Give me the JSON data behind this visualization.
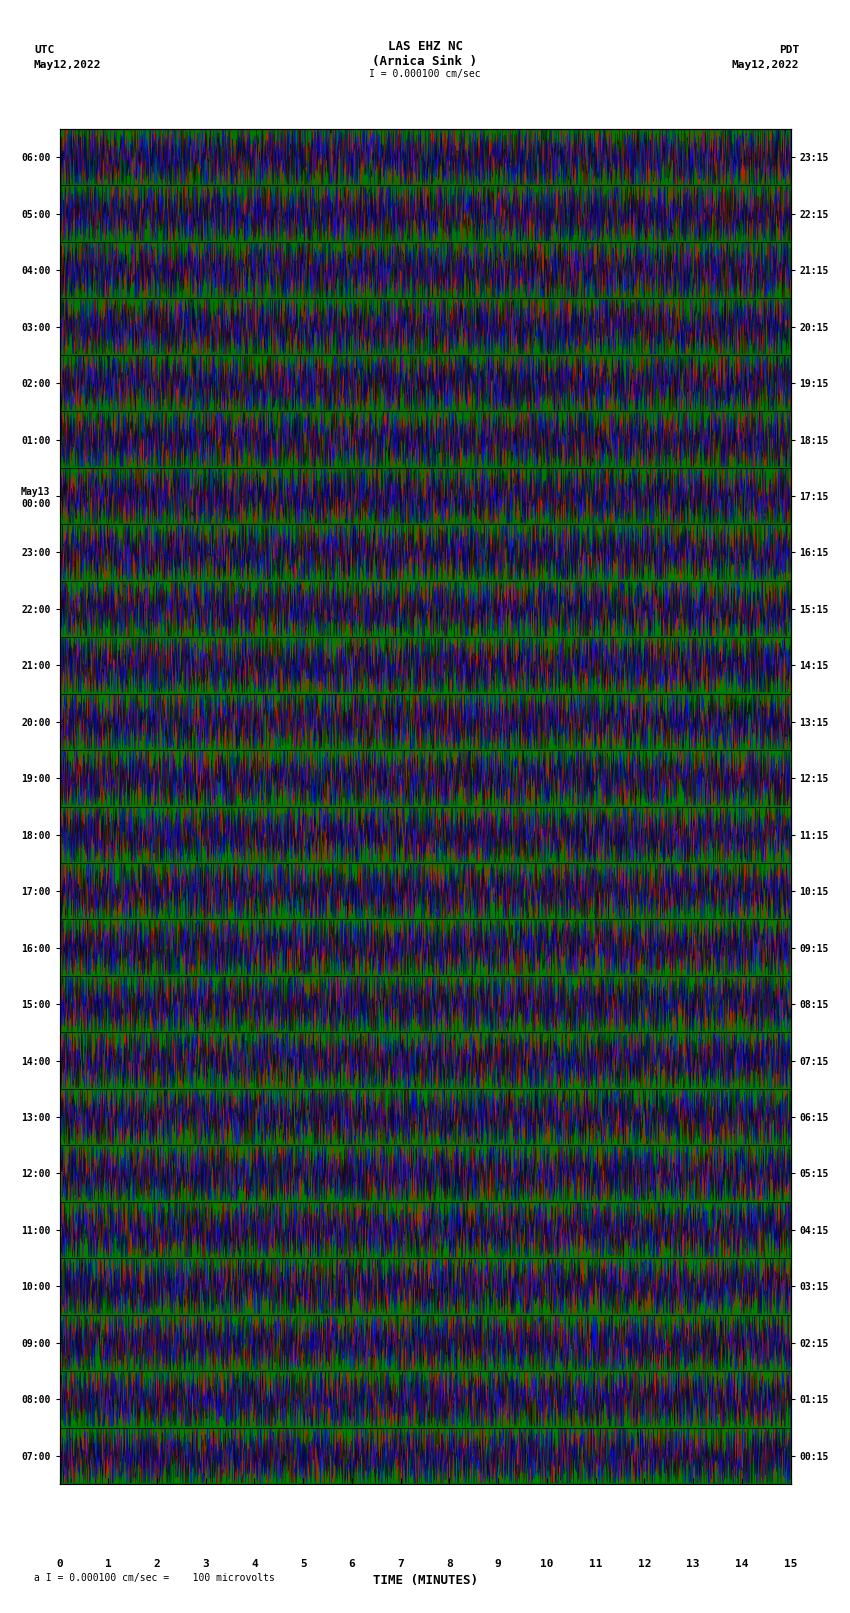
{
  "title_line1": "LAS EHZ NC",
  "title_line2": "(Arnica Sink )",
  "scale_label": "I = 0.000100 cm/sec",
  "bottom_label": "a I = 0.000100 cm/sec =    100 microvolts",
  "xlabel": "TIME (MINUTES)",
  "left_timezone": "UTC",
  "left_date": "May12,2022",
  "right_timezone": "PDT",
  "right_date": "May12,2022",
  "left_times": [
    "07:00",
    "08:00",
    "09:00",
    "10:00",
    "11:00",
    "12:00",
    "13:00",
    "14:00",
    "15:00",
    "16:00",
    "17:00",
    "18:00",
    "19:00",
    "20:00",
    "21:00",
    "22:00",
    "23:00",
    "May13\n00:00",
    "01:00",
    "02:00",
    "03:00",
    "04:00",
    "05:00",
    "06:00"
  ],
  "right_times": [
    "00:15",
    "01:15",
    "02:15",
    "03:15",
    "04:15",
    "05:15",
    "06:15",
    "07:15",
    "08:15",
    "09:15",
    "10:15",
    "11:15",
    "12:15",
    "13:15",
    "14:15",
    "15:15",
    "16:15",
    "17:15",
    "18:15",
    "19:15",
    "20:15",
    "21:15",
    "22:15",
    "23:15"
  ],
  "bg_color_main": "#008000",
  "bg_color_white": "#ffffff",
  "fig_width": 8.5,
  "fig_height": 16.13,
  "plot_colors": [
    "#ff0000",
    "#0000ff",
    "#008000",
    "#000000"
  ],
  "x_min": 0,
  "x_max": 15,
  "num_rows": 24
}
